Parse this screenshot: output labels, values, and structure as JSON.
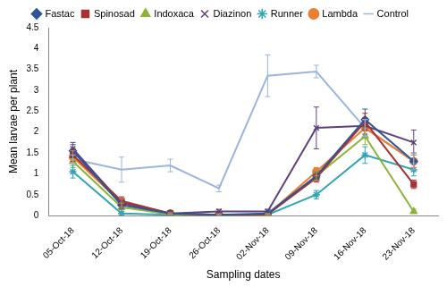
{
  "chart_data": {
    "type": "line",
    "x_label": "Sampling dates",
    "y_label": "Mean larvae per plant",
    "categories": [
      "05-Oct-18",
      "12-Oct-18",
      "19-Oct-18",
      "26-Oct-18",
      "02-Nov-18",
      "09-Nov-18",
      "16-Nov-18",
      "23-Nov-18"
    ],
    "ylim": [
      0,
      4.5
    ],
    "yticks": [
      0,
      0.5,
      1,
      1.5,
      2,
      2.5,
      3,
      3.5,
      4,
      4.5
    ],
    "grid": false,
    "legend": "top",
    "series": [
      {
        "name": "Fastac",
        "color": "#2f5597",
        "marker": "diamond",
        "values": [
          1.55,
          0.25,
          0.05,
          0.02,
          0.05,
          0.95,
          2.3,
          1.3
        ],
        "errors": [
          0.15,
          0.1,
          0.02,
          0.02,
          0.02,
          0.1,
          0.25,
          0.2
        ]
      },
      {
        "name": "Spinosad",
        "color": "#a83232",
        "marker": "square",
        "values": [
          1.45,
          0.35,
          0.05,
          0.02,
          0.03,
          0.9,
          2.25,
          0.75
        ],
        "errors": [
          0.15,
          0.1,
          0.02,
          0.02,
          0.02,
          0.1,
          0.2,
          0.1
        ]
      },
      {
        "name": "Indoxaca",
        "color": "#8db33a",
        "marker": "triangle",
        "values": [
          1.3,
          0.2,
          0.03,
          0.02,
          0.02,
          0.95,
          1.9,
          0.1
        ],
        "errors": [
          0.15,
          0.1,
          0.02,
          0.02,
          0.02,
          0.1,
          0.2,
          0.05
        ]
      },
      {
        "name": "Diazinon",
        "color": "#60407f",
        "marker": "x",
        "values": [
          1.6,
          0.3,
          0.05,
          0.1,
          0.1,
          2.1,
          2.15,
          1.75
        ],
        "errors": [
          0.15,
          0.1,
          0.02,
          0.05,
          0.05,
          0.5,
          0.2,
          0.3
        ]
      },
      {
        "name": "Runner",
        "color": "#31a5b5",
        "marker": "asterisk",
        "values": [
          1.05,
          0.05,
          0.02,
          0.02,
          0.02,
          0.5,
          1.45,
          1.1
        ],
        "errors": [
          0.15,
          0.05,
          0.02,
          0.02,
          0.02,
          0.1,
          0.2,
          0.15
        ]
      },
      {
        "name": "Lambda",
        "color": "#ed7d31",
        "marker": "circle",
        "values": [
          1.4,
          0.3,
          0.05,
          0.02,
          0.03,
          1.05,
          2.1,
          1.3
        ],
        "errors": [
          0.15,
          0.1,
          0.02,
          0.02,
          0.02,
          0.1,
          0.2,
          0.15
        ]
      },
      {
        "name": "Control",
        "color": "#9bb5dc",
        "marker": "none",
        "values": [
          1.35,
          1.1,
          1.2,
          0.65,
          3.35,
          3.45,
          2.1,
          1.3
        ],
        "errors": [
          0.1,
          0.3,
          0.15,
          0.08,
          0.5,
          0.15,
          0.2,
          0.2
        ]
      }
    ]
  }
}
